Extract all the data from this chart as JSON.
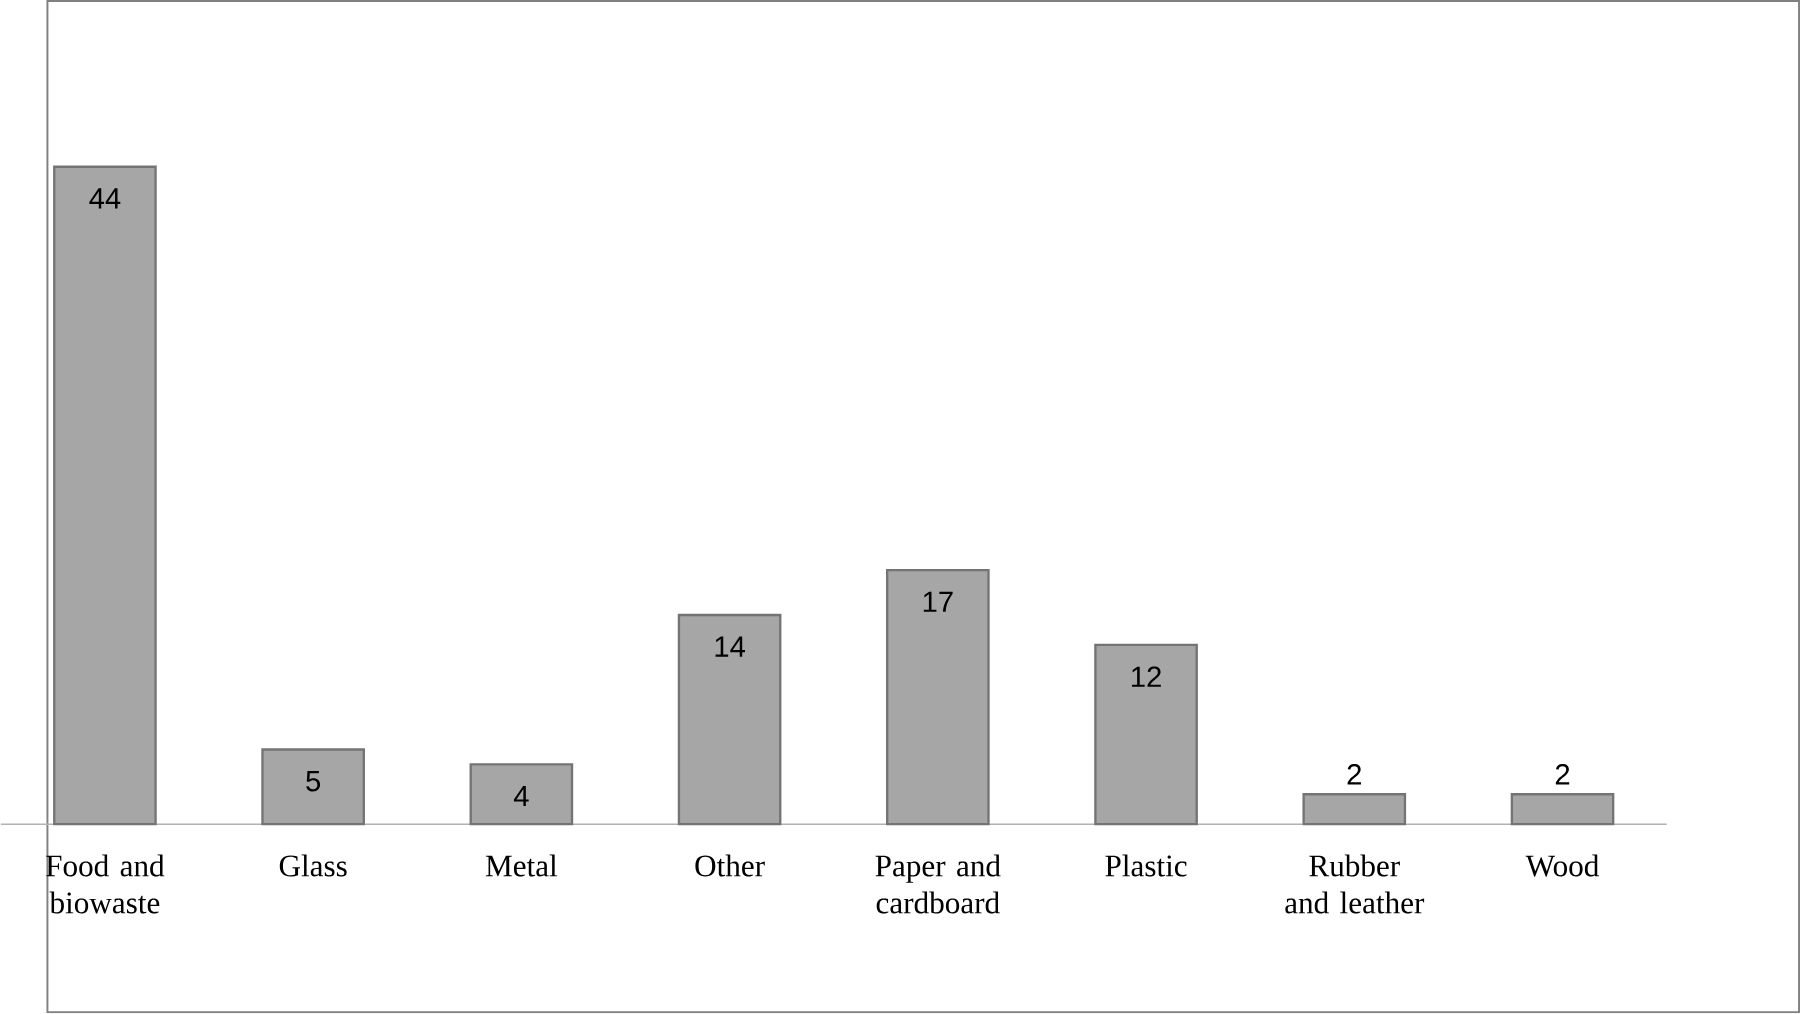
{
  "chart_data": {
    "type": "bar",
    "categories": [
      "Food and biowaste",
      "Glass",
      "Metal",
      "Other",
      "Paper and cardboard",
      "Plastic",
      "Rubber and leather",
      "Wood"
    ],
    "values": [
      44,
      5,
      4,
      14,
      17,
      12,
      2,
      2
    ],
    "color": "#a6a6a6",
    "data_labels": true
  }
}
